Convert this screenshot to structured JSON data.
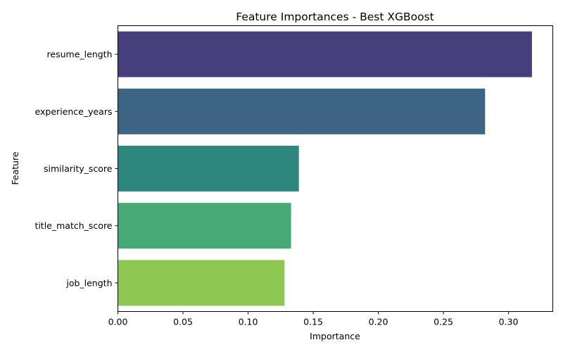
{
  "chart_data": {
    "type": "bar",
    "orientation": "horizontal",
    "title": "Feature Importances - Best XGBoost",
    "xlabel": "Importance",
    "ylabel": "Feature",
    "categories": [
      "resume_length",
      "experience_years",
      "similarity_score",
      "title_match_score",
      "job_length"
    ],
    "values": [
      0.318,
      0.282,
      0.139,
      0.133,
      0.128
    ],
    "colors": [
      "#463f7c",
      "#3c6583",
      "#2d877c",
      "#46a976",
      "#8ec853"
    ],
    "xlim": [
      0,
      0.334
    ],
    "xticks": [
      0.0,
      0.05,
      0.1,
      0.15,
      0.2,
      0.25,
      0.3
    ],
    "xtick_labels": [
      "0.00",
      "0.05",
      "0.10",
      "0.15",
      "0.20",
      "0.25",
      "0.30"
    ],
    "grid": false,
    "legend": false
  }
}
